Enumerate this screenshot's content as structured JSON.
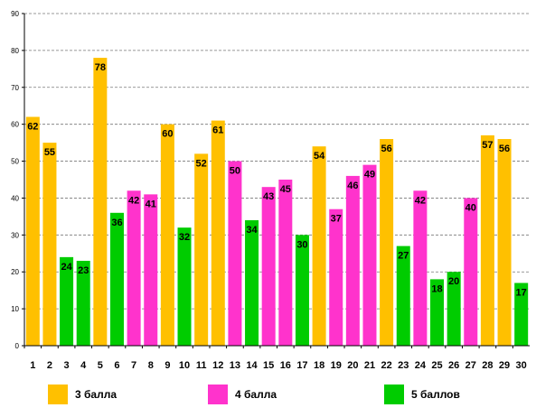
{
  "chart_data": {
    "type": "bar",
    "categories": [
      "1",
      "2",
      "3",
      "4",
      "5",
      "6",
      "7",
      "8",
      "9",
      "10",
      "11",
      "12",
      "13",
      "14",
      "15",
      "16",
      "17",
      "18",
      "19",
      "20",
      "21",
      "22",
      "23",
      "24",
      "25",
      "26",
      "27",
      "28",
      "29",
      "30"
    ],
    "values": [
      62,
      55,
      24,
      23,
      78,
      36,
      42,
      41,
      60,
      32,
      52,
      61,
      50,
      34,
      43,
      45,
      30,
      54,
      37,
      46,
      49,
      56,
      27,
      42,
      18,
      20,
      40,
      57,
      56,
      17
    ],
    "groups": [
      "3",
      "3",
      "5",
      "5",
      "3",
      "5",
      "4",
      "4",
      "3",
      "5",
      "3",
      "3",
      "4",
      "5",
      "4",
      "4",
      "5",
      "3",
      "4",
      "4",
      "4",
      "3",
      "5",
      "4",
      "5",
      "5",
      "4",
      "3",
      "3",
      "5"
    ],
    "ylim": [
      0,
      90
    ],
    "yticks": [
      0,
      10,
      20,
      30,
      40,
      50,
      60,
      70,
      80,
      90
    ],
    "grid": true,
    "legend_position": "bottom",
    "legend": [
      {
        "key": "3",
        "label": "3 балла",
        "color": "#FFC000"
      },
      {
        "key": "4",
        "label": "4 балла",
        "color": "#FF33CC"
      },
      {
        "key": "5",
        "label": "5 баллов",
        "color": "#00CC00"
      }
    ]
  }
}
